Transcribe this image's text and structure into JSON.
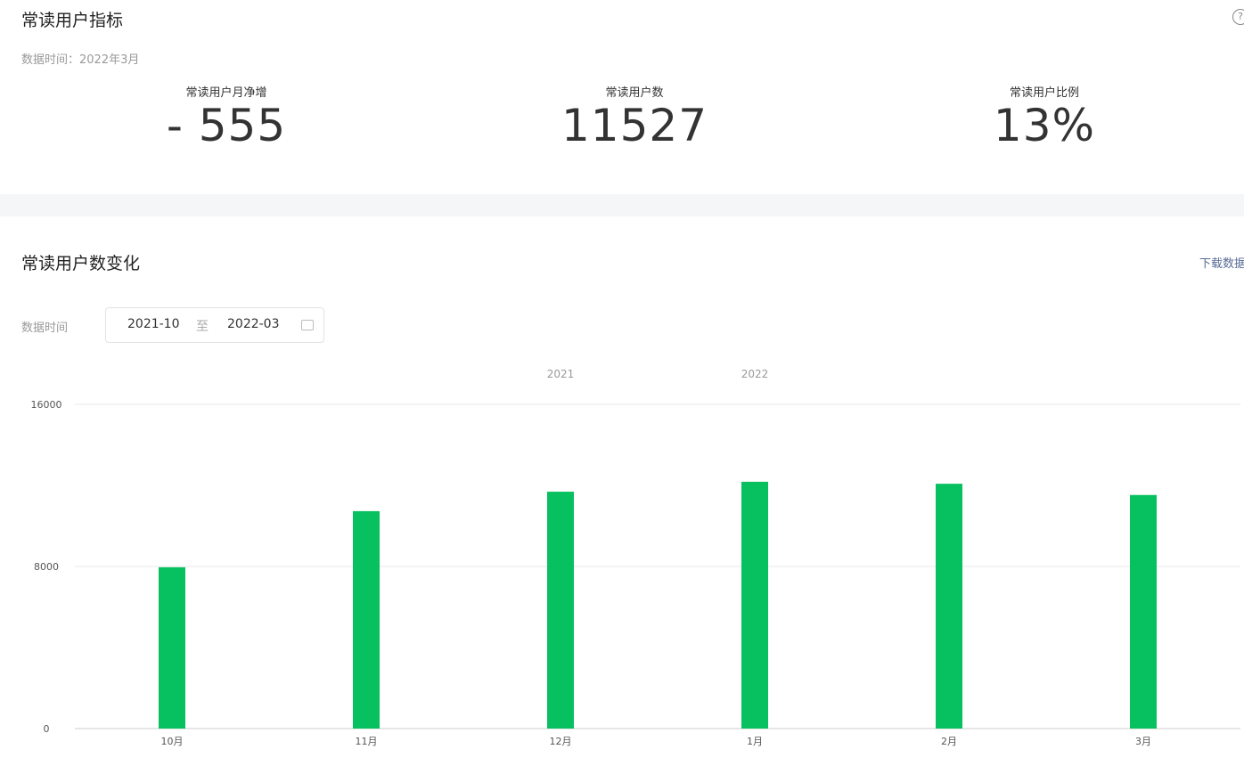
{
  "header": {
    "title": "常读用户指标",
    "date": "数据时间：2022年3月"
  },
  "metrics": [
    {
      "label": "常读用户月净增",
      "value": "- 555"
    },
    {
      "label": "常读用户数",
      "value": "11527"
    },
    {
      "label": "常读用户比例",
      "value": "13%"
    }
  ],
  "section": {
    "title": "常读用户数变化",
    "download": "下载数据",
    "date_label": "数据时间",
    "start": "2021-10",
    "separator": "至",
    "end": "2022-03"
  },
  "chart_data": {
    "type": "bar",
    "categories": [
      "10月",
      "11月",
      "12月",
      "1月",
      "2月",
      "3月"
    ],
    "years": [
      null,
      null,
      "2021",
      "2022",
      null,
      null
    ],
    "values": [
      7960,
      10730,
      11690,
      12180,
      12082,
      11527
    ],
    "color": "#07c160",
    "ylim": [
      0,
      16000
    ],
    "yticks": [
      0,
      8000,
      16000
    ],
    "grid": true
  }
}
